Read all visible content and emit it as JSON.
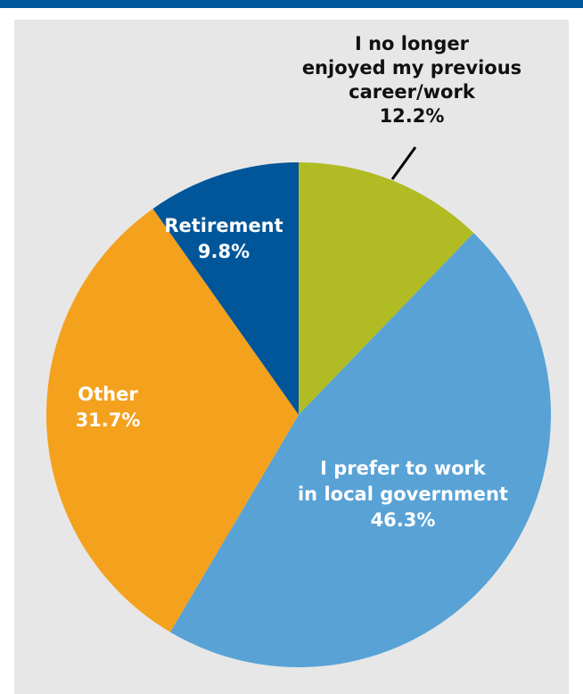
{
  "colors": {
    "top_rule": "#005699",
    "panel_background": "#e7e7e7",
    "leader_line": "#000000"
  },
  "chart_data": {
    "type": "pie",
    "title": "",
    "start_angle_deg": 0,
    "direction": "clockwise",
    "slices": [
      {
        "label_lines": [
          "I no longer",
          "enjoyed my previous",
          "career/work"
        ],
        "value": 12.2,
        "value_label": "12.2%",
        "color": "#b1bb24",
        "label_color": "#111111",
        "label_placement": "outside-with-leader"
      },
      {
        "label_lines": [
          "I prefer to work",
          "in local government"
        ],
        "value": 46.3,
        "value_label": "46.3%",
        "color": "#58a2d6",
        "label_color": "#ffffff",
        "label_placement": "inside"
      },
      {
        "label_lines": [
          "Other"
        ],
        "value": 31.7,
        "value_label": "31.7%",
        "color": "#f4a11e",
        "label_color": "#ffffff",
        "label_placement": "inside"
      },
      {
        "label_lines": [
          "Retirement"
        ],
        "value": 9.8,
        "value_label": "9.8%",
        "color": "#005699",
        "label_color": "#ffffff",
        "label_placement": "inside"
      }
    ]
  }
}
